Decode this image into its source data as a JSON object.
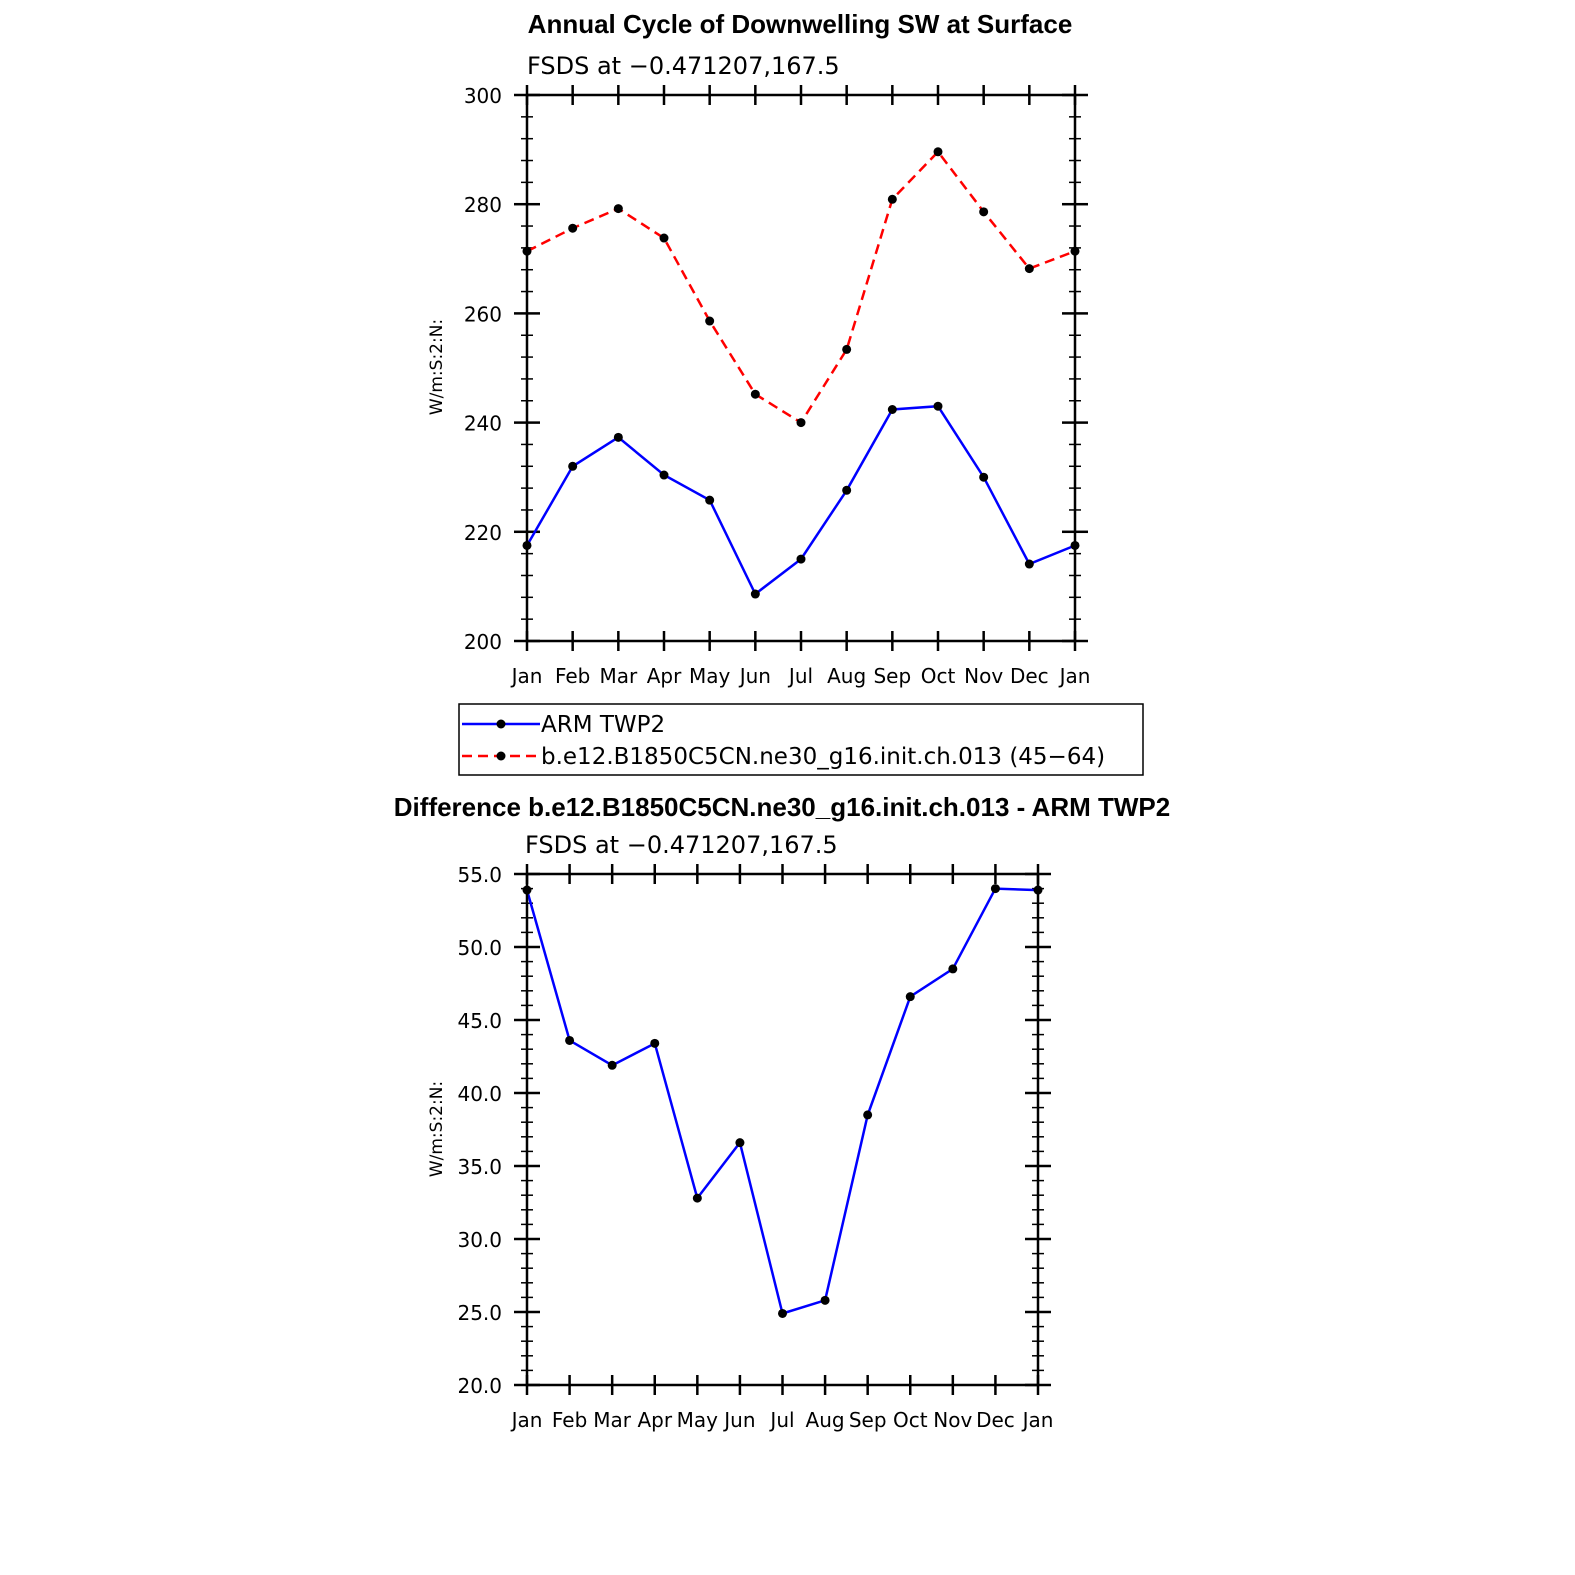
{
  "chart_data": [
    {
      "type": "line",
      "title": "Annual Cycle of Downwelling SW at Surface",
      "subtitle": "FSDS at −0.471207,167.5",
      "xlabel": "",
      "ylabel": "W/m:S:2:N:",
      "categories": [
        "Jan",
        "Feb",
        "Mar",
        "Apr",
        "May",
        "Jun",
        "Jul",
        "Aug",
        "Sep",
        "Oct",
        "Nov",
        "Dec",
        "Jan"
      ],
      "ylim": [
        200,
        300
      ],
      "yticks": [
        "200",
        "220",
        "240",
        "260",
        "280",
        "300"
      ],
      "grid": false,
      "legend": "below",
      "series": [
        {
          "name": "ARM TWP2",
          "color": "#0000ff",
          "dash": "solid",
          "values": [
            217.5,
            232.0,
            237.3,
            230.4,
            225.8,
            208.6,
            215.0,
            227.6,
            242.4,
            243.0,
            230.0,
            214.1,
            217.5
          ]
        },
        {
          "name": "b.e12.B1850C5CN.ne30_g16.init.ch.013 (45−64)",
          "color": "#ff0000",
          "dash": "dashed",
          "values": [
            271.4,
            275.6,
            279.2,
            273.8,
            258.6,
            245.2,
            240.0,
            253.4,
            280.9,
            289.6,
            278.6,
            268.2,
            271.4
          ]
        }
      ]
    },
    {
      "type": "line",
      "title": "Difference b.e12.B1850C5CN.ne30_g16.init.ch.013 - ARM TWP2",
      "subtitle": "FSDS at −0.471207,167.5",
      "xlabel": "",
      "ylabel": "W/m:S:2:N:",
      "categories": [
        "Jan",
        "Feb",
        "Mar",
        "Apr",
        "May",
        "Jun",
        "Jul",
        "Aug",
        "Sep",
        "Oct",
        "Nov",
        "Dec",
        "Jan"
      ],
      "ylim": [
        20,
        55
      ],
      "yticks": [
        "20.0",
        "25.0",
        "30.0",
        "35.0",
        "40.0",
        "45.0",
        "50.0",
        "55.0"
      ],
      "grid": false,
      "series": [
        {
          "color": "#0000ff",
          "dash": "solid",
          "values": [
            53.9,
            43.6,
            41.9,
            43.4,
            32.8,
            36.6,
            24.9,
            25.8,
            38.5,
            46.6,
            48.5,
            54.0,
            53.9
          ]
        }
      ]
    }
  ]
}
